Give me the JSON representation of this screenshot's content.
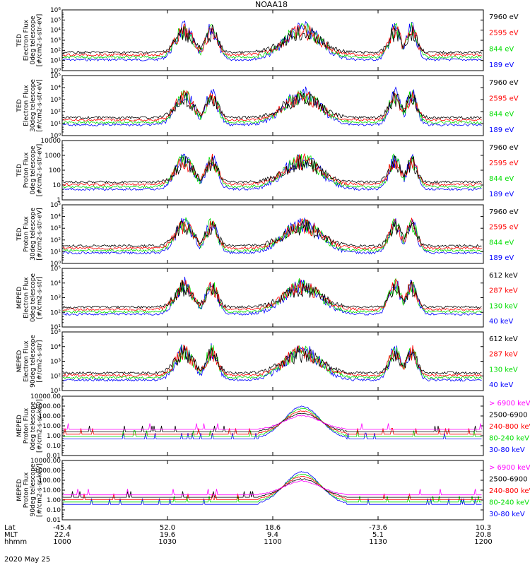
{
  "title": "NOAA18",
  "date": "2020 May 25",
  "x_rows": [
    {
      "label": "Lat",
      "values": [
        "-45.4",
        "52.0",
        "18.6",
        "-73.6",
        "10.3"
      ]
    },
    {
      "label": "MLT",
      "values": [
        "22.4",
        "19.6",
        "9.4",
        "5.1",
        "20.8"
      ]
    },
    {
      "label": "hhmm",
      "values": [
        "1000",
        "1030",
        "1100",
        "1130",
        "1200"
      ]
    }
  ],
  "colors": {
    "black": "#000000",
    "red": "#ff0000",
    "green": "#00dd00",
    "blue": "#0000ff",
    "magenta": "#ff00ff"
  },
  "chart_data": [
    {
      "type": "line",
      "ylabel": [
        "TED",
        "Electron Flux",
        "0deg telescope",
        "[#/cm2-s-str-eV]"
      ],
      "scale": "log",
      "yticks": [
        "10⁶",
        "10⁵",
        "10⁴",
        "10³",
        "10²",
        "10¹",
        "10⁰"
      ],
      "ylim": [
        1,
        1000000
      ],
      "series": [
        {
          "name": "7960 eV",
          "color": "black"
        },
        {
          "name": "2595 eV",
          "color": "red"
        },
        {
          "name": "844 eV",
          "color": "green"
        },
        {
          "name": "189 eV",
          "color": "blue"
        }
      ]
    },
    {
      "type": "line",
      "ylabel": [
        "TED",
        "Electron Flux",
        "30deg telescope",
        "[#/cm2-s-str-eV]"
      ],
      "scale": "log",
      "yticks": [
        "10⁵",
        "10⁴",
        "10³",
        "10²",
        "10¹",
        "10⁰"
      ],
      "ylim": [
        1,
        100000
      ],
      "series": [
        {
          "name": "7960 eV",
          "color": "black"
        },
        {
          "name": "2595 eV",
          "color": "red"
        },
        {
          "name": "844 eV",
          "color": "green"
        },
        {
          "name": "189 eV",
          "color": "blue"
        }
      ]
    },
    {
      "type": "line",
      "ylabel": [
        "TED",
        "Proton Flux",
        "0deg telescope",
        "[#/cm2-s-str-eV]"
      ],
      "scale": "log",
      "yticks": [
        "10000",
        "1000",
        "100",
        "10",
        "1"
      ],
      "ylim": [
        1,
        10000
      ],
      "series": [
        {
          "name": "7960 eV",
          "color": "black"
        },
        {
          "name": "2595 eV",
          "color": "red"
        },
        {
          "name": "844 eV",
          "color": "green"
        },
        {
          "name": "189 eV",
          "color": "blue"
        }
      ]
    },
    {
      "type": "line",
      "ylabel": [
        "TED",
        "Proton Flux",
        "30deg telescope",
        "[#/cm2-s-str-eV]"
      ],
      "scale": "log",
      "yticks": [
        "10⁵",
        "10⁴",
        "10³",
        "10²",
        "10¹",
        "10⁰"
      ],
      "ylim": [
        1,
        100000
      ],
      "series": [
        {
          "name": "7960 eV",
          "color": "black"
        },
        {
          "name": "2595 eV",
          "color": "red"
        },
        {
          "name": "844 eV",
          "color": "green"
        },
        {
          "name": "189 eV",
          "color": "blue"
        }
      ]
    },
    {
      "type": "line",
      "ylabel": [
        "MEPED",
        "Electron Flux",
        "0deg telescope",
        "[#/cm2-s-str]"
      ],
      "scale": "log",
      "yticks": [
        "10⁵",
        "10⁴",
        "10³",
        "10²",
        "10¹"
      ],
      "ylim": [
        10,
        100000
      ],
      "series": [
        {
          "name": "612 keV",
          "color": "black"
        },
        {
          "name": "287 keV",
          "color": "red"
        },
        {
          "name": "130 keV",
          "color": "green"
        },
        {
          "name": "40 keV",
          "color": "blue"
        }
      ]
    },
    {
      "type": "line",
      "ylabel": [
        "MEPED",
        "Electron Flux",
        "90deg telescope",
        "[#/cm2-s-str]"
      ],
      "scale": "log",
      "yticks": [
        "10⁵",
        "10⁴",
        "10³",
        "10²",
        "10¹"
      ],
      "ylim": [
        10,
        100000
      ],
      "series": [
        {
          "name": "612 keV",
          "color": "black"
        },
        {
          "name": "287 keV",
          "color": "red"
        },
        {
          "name": "130 keV",
          "color": "green"
        },
        {
          "name": "40 keV",
          "color": "blue"
        }
      ]
    },
    {
      "type": "line",
      "ylabel": [
        "MEPED",
        "Proton Flux",
        "0deg telescope",
        "[#/cm2-s-sr-keV]"
      ],
      "scale": "log",
      "yticks": [
        "10000.00",
        "1000.00",
        "100.00",
        "10.00",
        "1.00",
        "0.10",
        "0.01"
      ],
      "ylim": [
        0.01,
        10000
      ],
      "series": [
        {
          "name": "> 6900 keV",
          "color": "magenta"
        },
        {
          "name": "2500-6900",
          "color": "black"
        },
        {
          "name": "240-800 keV",
          "color": "red"
        },
        {
          "name": "80-240 keV",
          "color": "green"
        },
        {
          "name": "30-80 keV",
          "color": "blue"
        }
      ]
    },
    {
      "type": "line",
      "ylabel": [
        "MEPED",
        "Proton Flux",
        "90deg telescope",
        "[#/cm2-s-sr-keV]"
      ],
      "scale": "log",
      "yticks": [
        "10000.00",
        "1000.00",
        "100.00",
        "10.00",
        "1.00",
        "0.10",
        "0.01"
      ],
      "ylim": [
        0.01,
        10000
      ],
      "series": [
        {
          "name": "> 6900 keV",
          "color": "magenta"
        },
        {
          "name": "2500-6900",
          "color": "black"
        },
        {
          "name": "240-800 keV",
          "color": "red"
        },
        {
          "name": "80-240 keV",
          "color": "green"
        },
        {
          "name": "30-80 keV",
          "color": "blue"
        }
      ]
    }
  ]
}
